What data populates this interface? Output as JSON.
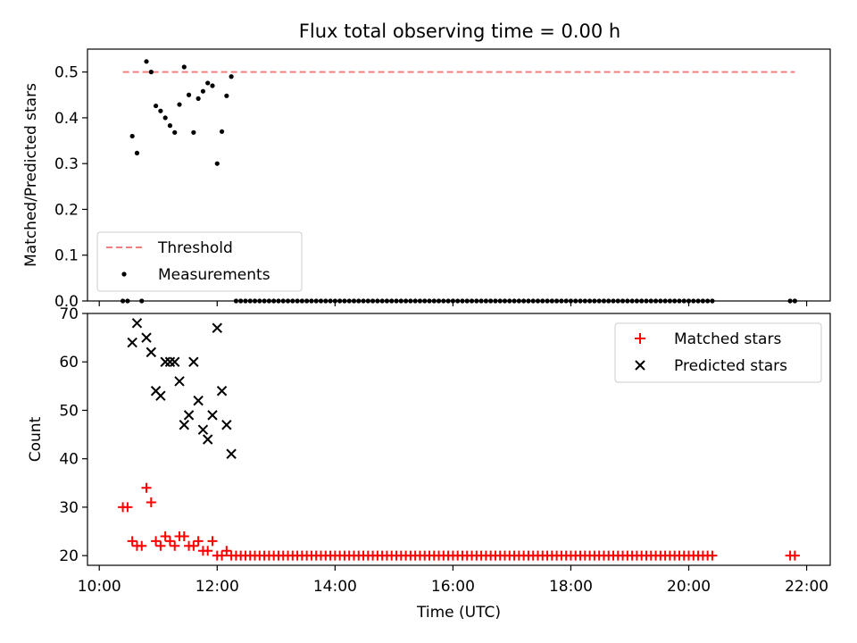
{
  "chart_data": [
    {
      "type": "scatter",
      "title": "Flux total observing time = 0.00 h",
      "ylabel": "Matched/Predicted stars",
      "xlabel": "",
      "xlim_hours": [
        9.8,
        22.4
      ],
      "ylim": [
        0,
        0.55
      ],
      "yticks": [
        0.0,
        0.1,
        0.2,
        0.3,
        0.4,
        0.5
      ],
      "ytick_labels": [
        "0.0",
        "0.1",
        "0.2",
        "0.3",
        "0.4",
        "0.5"
      ],
      "legend": {
        "placement": "lower-left",
        "entries": [
          "Threshold",
          "Measurements"
        ]
      },
      "threshold": {
        "name": "Threshold",
        "y": 0.5,
        "x_range_hours": [
          10.4,
          21.8
        ],
        "color": "#f08080"
      },
      "measurements": {
        "name": "Measurements",
        "color": "#000000",
        "x_hours": [
          10.4,
          10.48,
          10.56,
          10.64,
          10.72,
          10.8,
          10.88,
          10.96,
          11.04,
          11.12,
          11.2,
          11.28,
          11.36,
          11.44,
          11.52,
          11.6,
          11.68,
          11.76,
          11.84,
          11.92,
          12.0,
          12.08,
          12.16,
          12.24
        ],
        "y": [
          0,
          0,
          0.36,
          0.323,
          0,
          0.523,
          0.5,
          0.426,
          0.415,
          0.4,
          0.383,
          0.368,
          0.429,
          0.511,
          0.45,
          0.368,
          0.442,
          0.458,
          0.476,
          0.47,
          0.3,
          0.37,
          0.448,
          0.49
        ],
        "zero_run_hours": [
          12.32,
          20.4
        ],
        "zero_run_step": 0.08,
        "tail_x_hours": [
          21.72,
          21.8
        ],
        "tail_y": [
          0,
          0
        ]
      }
    },
    {
      "type": "scatter",
      "title": "",
      "ylabel": "Count",
      "xlabel": "Time (UTC)",
      "xlim_hours": [
        9.8,
        22.4
      ],
      "xticks_hours": [
        10,
        12,
        14,
        16,
        18,
        20,
        22
      ],
      "xtick_labels": [
        "10:00",
        "12:00",
        "14:00",
        "16:00",
        "18:00",
        "20:00",
        "22:00"
      ],
      "ylim": [
        18,
        70
      ],
      "yticks": [
        20,
        30,
        40,
        50,
        60,
        70
      ],
      "ytick_labels": [
        "20",
        "30",
        "40",
        "50",
        "60",
        "70"
      ],
      "legend": {
        "placement": "top-right",
        "entries": [
          "Matched stars",
          "Predicted stars"
        ]
      },
      "series": [
        {
          "name": "Matched stars",
          "marker": "+",
          "color": "#ff0000",
          "x_hours": [
            10.4,
            10.48,
            10.56,
            10.64,
            10.72,
            10.8,
            10.88,
            10.96,
            11.04,
            11.12,
            11.2,
            11.28,
            11.36,
            11.44,
            11.52,
            11.6,
            11.68,
            11.76,
            11.84,
            11.92,
            12.0,
            12.08,
            12.16,
            12.24
          ],
          "y": [
            30,
            30,
            23,
            22,
            22,
            34,
            31,
            23,
            22,
            24,
            23,
            22,
            24,
            24,
            22,
            22,
            23,
            21,
            21,
            23,
            20,
            20,
            21,
            20
          ],
          "constant_run_hours": [
            12.32,
            20.4
          ],
          "constant_run_step": 0.08,
          "constant_run_value": 20,
          "tail_x_hours": [
            21.72,
            21.8
          ],
          "tail_y": [
            20,
            20
          ]
        },
        {
          "name": "Predicted stars",
          "marker": "x",
          "color": "#000000",
          "x_hours": [
            10.56,
            10.64,
            10.8,
            10.88,
            10.96,
            11.04,
            11.12,
            11.2,
            11.28,
            11.36,
            11.44,
            11.52,
            11.6,
            11.68,
            11.76,
            11.84,
            11.92,
            12.0,
            12.08,
            12.16,
            12.24
          ],
          "y": [
            64,
            68,
            65,
            62,
            54,
            53,
            60,
            60,
            60,
            56,
            47,
            49,
            60,
            52,
            46,
            44,
            49,
            67,
            54,
            47,
            41
          ]
        }
      ]
    }
  ]
}
